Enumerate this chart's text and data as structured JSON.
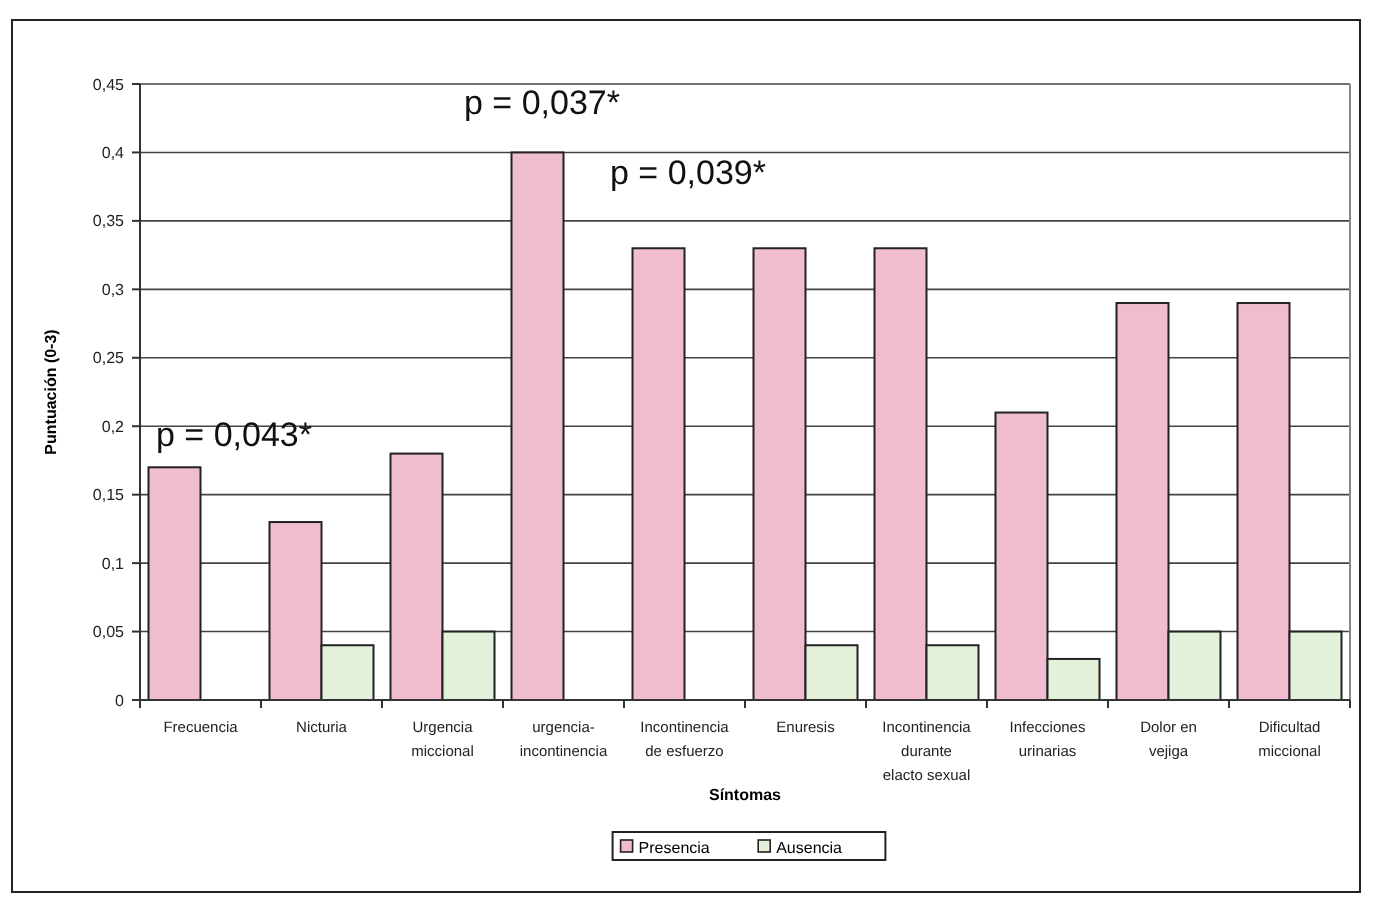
{
  "chart_data": {
    "type": "bar",
    "xlabel": "Síntomas",
    "ylabel": "Puntuación (0-3)",
    "categories": [
      "Frecuencia",
      "Nicturia",
      "Urgencia miccional",
      "urgencia-incontinencia",
      "Incontinencia de esfuerzo",
      "Enuresis",
      "Incontinencia durante elacto sexual",
      "Infecciones urinarias",
      "Dolor en vejiga",
      "Dificultad miccional"
    ],
    "series": [
      {
        "name": "Presencia",
        "color": "#f0bcd0",
        "values": [
          0.17,
          0.13,
          0.18,
          0.4,
          0.33,
          0.33,
          0.33,
          0.21,
          0.29,
          0.29
        ]
      },
      {
        "name": "Ausencia",
        "color": "#e3f0da",
        "values": [
          0,
          0.04,
          0.05,
          0,
          0,
          0.04,
          0.04,
          0.03,
          0.05,
          0.05
        ]
      }
    ],
    "ylim": [
      0,
      0.45
    ],
    "yticks": [
      {
        "value": 0,
        "label": "0"
      },
      {
        "value": 0.05,
        "label": "0,05"
      },
      {
        "value": 0.1,
        "label": "0,1"
      },
      {
        "value": 0.15,
        "label": "0,15"
      },
      {
        "value": 0.2,
        "label": "0,2"
      },
      {
        "value": 0.25,
        "label": "0,25"
      },
      {
        "value": 0.3,
        "label": "0,3"
      },
      {
        "value": 0.35,
        "label": "0,35"
      },
      {
        "value": 0.4,
        "label": "0,4"
      },
      {
        "value": 0.45,
        "label": "0,45"
      }
    ],
    "grid": "y",
    "legend": "bottom",
    "annotations": [
      "p = 0,043*",
      "p = 0,037*",
      "p = 0,039*"
    ]
  }
}
